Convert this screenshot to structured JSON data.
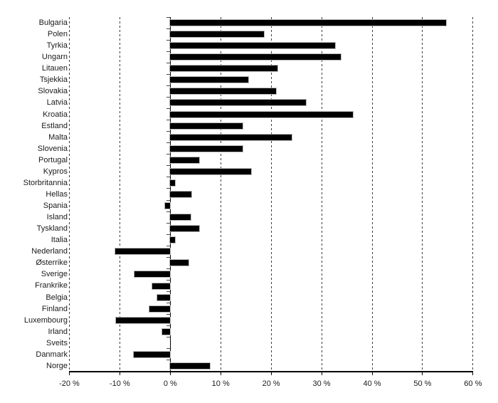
{
  "chart_data": {
    "type": "bar",
    "orientation": "horizontal",
    "title": "",
    "xlabel": "",
    "ylabel": "",
    "xlim": [
      -20,
      60
    ],
    "grid": "dashed-vertical-every-10",
    "bar_color": "#000000",
    "categories": [
      "Bulgaria",
      "Polen",
      "Tyrkia",
      "Ungarn",
      "Litauen",
      "Tsjekkia",
      "Slovakia",
      "Latvia",
      "Kroatia",
      "Estland",
      "Malta",
      "Slovenia",
      "Portugal",
      "Kypros",
      "Storbritannia",
      "Hellas",
      "Spania",
      "Island",
      "Tyskland",
      "Italia",
      "Nederland",
      "Østerrike",
      "Sverige",
      "Frankrike",
      "Belgia",
      "Finland",
      "Luxembourg",
      "Irland",
      "Sveits",
      "Danmark",
      "Norge"
    ],
    "values": [
      54.7,
      18.5,
      32.7,
      33.8,
      21.3,
      15.5,
      21.0,
      26.9,
      36.2,
      14.3,
      24.0,
      14.3,
      5.8,
      16.1,
      1.0,
      4.2,
      -1.0,
      4.0,
      5.7,
      1.0,
      -10.9,
      3.6,
      -7.1,
      -3.6,
      -2.6,
      -4.1,
      -10.8,
      -1.6,
      0,
      -7.3,
      7.8
    ],
    "x_ticks": [
      -20,
      -10,
      0,
      10,
      20,
      30,
      40,
      50,
      60
    ],
    "x_tick_labels": [
      "-20 %",
      "-10 %",
      "0 %",
      "10 %",
      "20 %",
      "30 %",
      "40 %",
      "50 %",
      "60 %"
    ]
  }
}
